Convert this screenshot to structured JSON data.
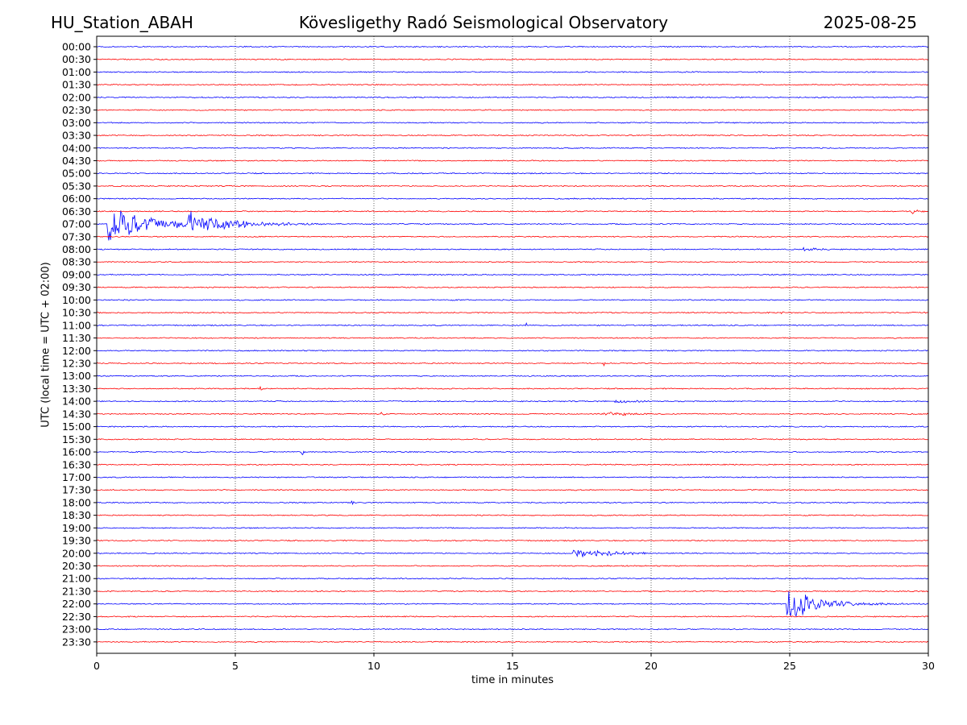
{
  "header": {
    "station": "HU_Station_ABAH",
    "title": "Kövesligethy Radó Seismological Observatory",
    "date": "2025-08-25"
  },
  "chart_data": {
    "type": "line",
    "subtype": "helicorder",
    "xlabel": "time in minutes",
    "ylabel": "UTC (local time = UTC + 02:00)",
    "xlim": [
      0,
      30
    ],
    "x_ticks": [
      0,
      5,
      10,
      15,
      20,
      25,
      30
    ],
    "grid": "vertical dotted lines at 5-minute intervals",
    "y_ticks": [
      "00:00",
      "00:30",
      "01:00",
      "01:30",
      "02:00",
      "02:30",
      "03:00",
      "03:30",
      "04:00",
      "04:30",
      "05:00",
      "05:30",
      "06:00",
      "06:30",
      "07:00",
      "07:30",
      "08:00",
      "08:30",
      "09:00",
      "09:30",
      "10:00",
      "10:30",
      "11:00",
      "11:30",
      "12:00",
      "12:30",
      "13:00",
      "13:30",
      "14:00",
      "14:30",
      "15:00",
      "15:30",
      "16:00",
      "16:30",
      "17:00",
      "17:30",
      "18:00",
      "18:30",
      "19:00",
      "19:30",
      "20:00",
      "20:30",
      "21:00",
      "21:30",
      "22:00",
      "22:30",
      "23:00",
      "23:30"
    ],
    "trace_colors": [
      "#0000ff",
      "#ff0000"
    ],
    "noise_level": 0.05,
    "events": [
      {
        "trace": "07:00",
        "start_min": 0.4,
        "end_min": 8.0,
        "peak": 1.6,
        "decay_min": 1.5
      },
      {
        "trace": "07:00",
        "start_min": 3.3,
        "end_min": 8.5,
        "peak": 1.0,
        "decay_min": 1.2
      },
      {
        "trace": "06:30",
        "start_min": 29.4,
        "end_min": 29.9,
        "peak": 0.4,
        "decay_min": 0.2
      },
      {
        "trace": "08:00",
        "start_min": 25.5,
        "end_min": 26.5,
        "peak": 0.12,
        "decay_min": 0.5
      },
      {
        "trace": "11:00",
        "start_min": 15.5,
        "end_min": 15.7,
        "peak": 0.3,
        "decay_min": 0.05
      },
      {
        "trace": "10:30",
        "start_min": 24.7,
        "end_min": 24.9,
        "peak": 0.25,
        "decay_min": 0.05
      },
      {
        "trace": "12:30",
        "start_min": 18.3,
        "end_min": 18.5,
        "peak": 0.25,
        "decay_min": 0.05
      },
      {
        "trace": "13:30",
        "start_min": 5.9,
        "end_min": 6.1,
        "peak": 0.25,
        "decay_min": 0.05
      },
      {
        "trace": "14:00",
        "start_min": 18.7,
        "end_min": 19.9,
        "peak": 0.15,
        "decay_min": 0.6
      },
      {
        "trace": "14:30",
        "start_min": 18.3,
        "end_min": 20.0,
        "peak": 0.2,
        "decay_min": 0.8
      },
      {
        "trace": "14:30",
        "start_min": 10.2,
        "end_min": 10.5,
        "peak": 0.2,
        "decay_min": 0.1
      },
      {
        "trace": "16:00",
        "start_min": 7.4,
        "end_min": 7.6,
        "peak": 0.4,
        "decay_min": 0.05
      },
      {
        "trace": "18:00",
        "start_min": 9.2,
        "end_min": 9.4,
        "peak": 0.2,
        "decay_min": 0.05
      },
      {
        "trace": "20:00",
        "start_min": 17.2,
        "end_min": 19.8,
        "peak": 0.35,
        "decay_min": 1.5
      },
      {
        "trace": "22:00",
        "start_min": 24.9,
        "end_min": 30.0,
        "peak": 1.6,
        "decay_min": 1.0
      }
    ]
  }
}
